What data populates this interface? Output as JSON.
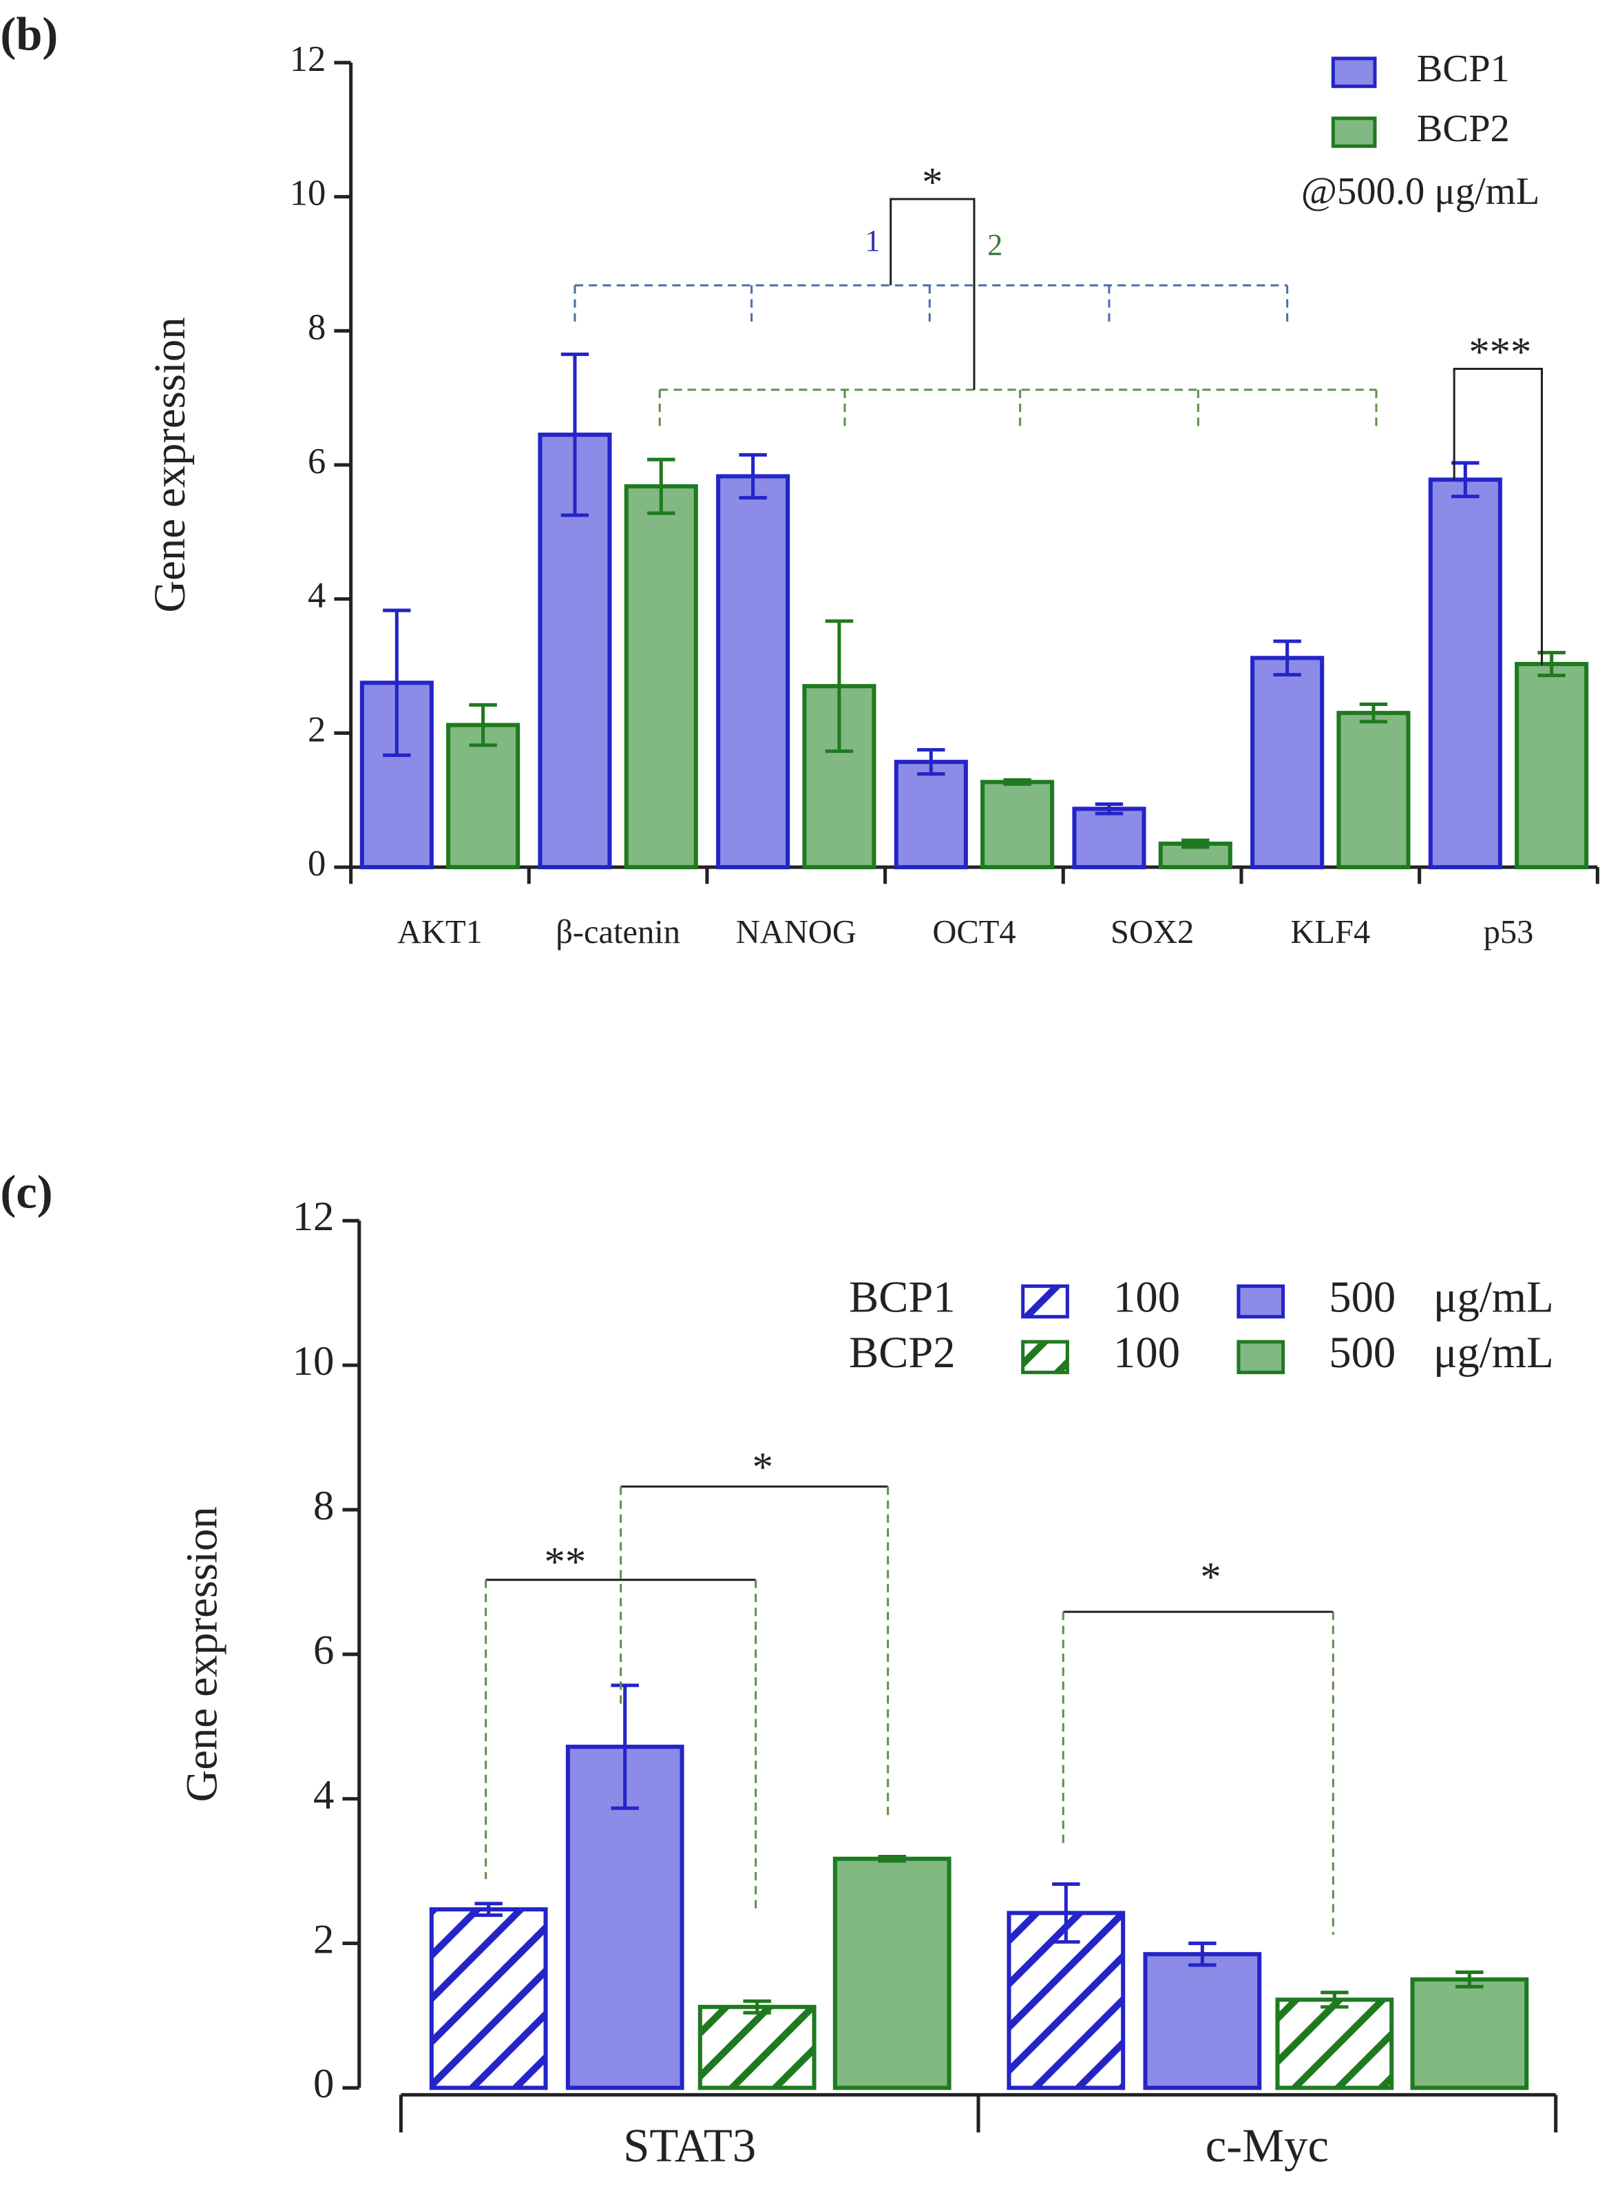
{
  "chart_data": [
    {
      "type": "bar",
      "title": "(b)",
      "y_label": "Gene expression",
      "categories": [
        "AKT1",
        "β-catenin",
        "NANOG",
        "OCT4",
        "SOX2",
        "KLF4",
        "p53"
      ],
      "series": [
        {
          "name": "BCP1",
          "color": "#8c8ce8",
          "edge": "#2424c8",
          "values": [
            2.75,
            6.45,
            5.83,
            1.57,
            0.87,
            3.12,
            5.78
          ],
          "errors": [
            1.08,
            1.2,
            0.32,
            0.18,
            0.07,
            0.25,
            0.25
          ]
        },
        {
          "name": "BCP2",
          "color": "#82b882",
          "edge": "#1f7a1f",
          "values": [
            2.12,
            5.68,
            2.7,
            1.27,
            0.35,
            2.3,
            3.03
          ],
          "errors": [
            0.3,
            0.4,
            0.97,
            0.03,
            0.05,
            0.13,
            0.17
          ]
        }
      ],
      "legend_note": "@500.0 μg/mL",
      "annotations": [
        "*",
        "1",
        "2",
        "***"
      ],
      "ylim": [
        0,
        12
      ],
      "yticks": [
        0,
        2,
        4,
        6,
        8,
        10,
        12
      ]
    },
    {
      "type": "bar",
      "title": "(c)",
      "y_label": "Gene expression",
      "categories": [
        "STAT3",
        "c-Myc"
      ],
      "series": [
        {
          "name": "BCP1",
          "dose": "100",
          "hatch": true,
          "color": "#2424c8",
          "values": [
            2.47,
            2.42
          ],
          "errors": [
            0.08,
            0.4
          ]
        },
        {
          "dose": "500",
          "unit": "μg/mL",
          "hatch": false,
          "color": "#8c8ce8",
          "edge": "#2424c8",
          "values": [
            4.72,
            1.85
          ],
          "errors": [
            0.85,
            0.15
          ]
        },
        {
          "name": "BCP2",
          "dose": "100",
          "hatch": true,
          "color": "#1f7a1f",
          "values": [
            1.12,
            1.22
          ],
          "errors": [
            0.08,
            0.1
          ]
        },
        {
          "dose": "500",
          "unit": "μg/mL",
          "hatch": false,
          "color": "#82b882",
          "edge": "#1f7a1f",
          "values": [
            3.17,
            1.5
          ],
          "errors": [
            0.03,
            0.1
          ]
        }
      ],
      "annotations": [
        "**",
        "*",
        "*"
      ],
      "ylim": [
        0,
        12
      ],
      "yticks": [
        0,
        2,
        4,
        6,
        8,
        10,
        12
      ]
    }
  ]
}
